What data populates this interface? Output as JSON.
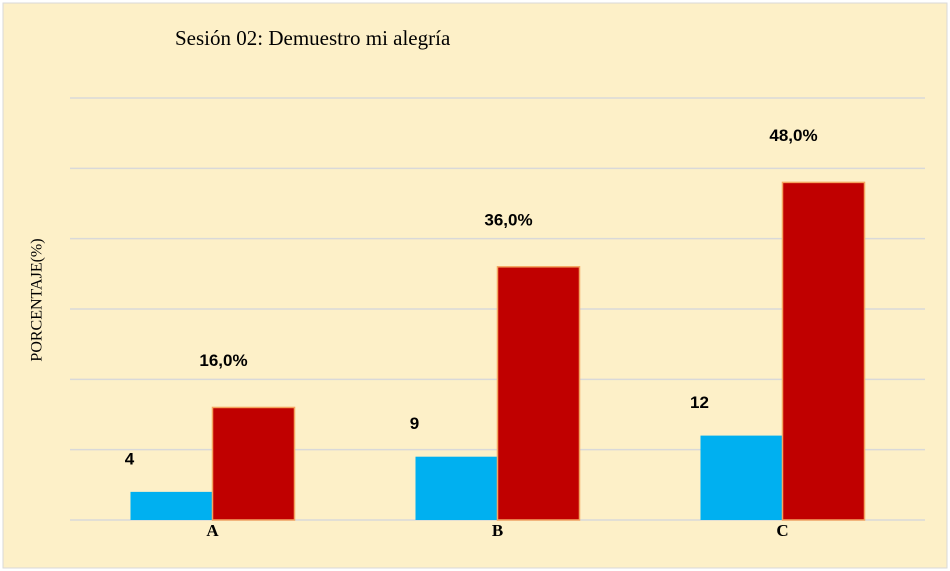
{
  "chart_data": {
    "type": "bar",
    "title": "Sesión 02: Demuestro mi alegría",
    "y_label": "PORCENTAJE(%)",
    "categories": [
      "A",
      "B",
      "C"
    ],
    "series": [
      {
        "color": "#00b0f0",
        "values": [
          4,
          9,
          12
        ]
      },
      {
        "color": "#c00000",
        "values": [
          16,
          36,
          48
        ],
        "value_labels": [
          "16,0%",
          "36,0%",
          "48,0%"
        ]
      }
    ],
    "ylim": [
      0,
      60
    ],
    "yticks": [
      0,
      10,
      20,
      30,
      40,
      50,
      60
    ],
    "grid": true
  }
}
